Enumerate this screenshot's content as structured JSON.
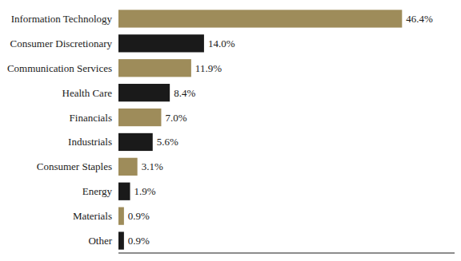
{
  "chart_data": {
    "type": "bar",
    "orientation": "horizontal",
    "categories": [
      "Information Technology",
      "Consumer Discretionary",
      "Communication Services",
      "Health Care",
      "Financials",
      "Industrials",
      "Consumer Staples",
      "Energy",
      "Materials",
      "Other"
    ],
    "values": [
      46.4,
      14.0,
      11.9,
      8.4,
      7.0,
      5.6,
      3.1,
      1.9,
      0.9,
      0.9
    ],
    "value_labels": [
      "46.4%",
      "14.0%",
      "11.9%",
      "8.4%",
      "7.0%",
      "5.6%",
      "3.1%",
      "1.9%",
      "0.9%",
      "0.9%"
    ],
    "colors": [
      "#9e8c5a",
      "#1a1a1a",
      "#9e8c5a",
      "#1a1a1a",
      "#9e8c5a",
      "#1a1a1a",
      "#9e8c5a",
      "#1a1a1a",
      "#9e8c5a",
      "#1a1a1a"
    ],
    "xlim": [
      0,
      55
    ],
    "data_labels": true,
    "tick_labels": "y"
  }
}
